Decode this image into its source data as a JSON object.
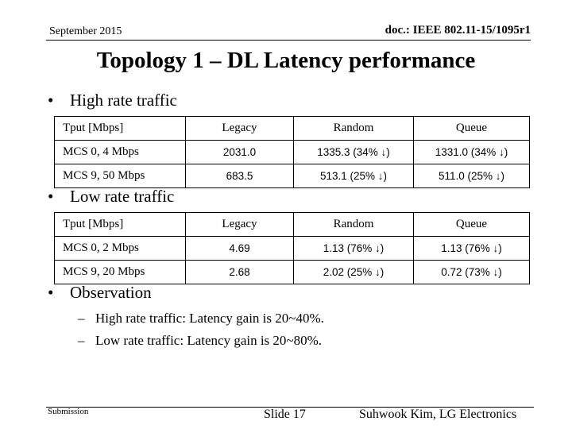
{
  "header": {
    "date": "September 2015",
    "doc": "doc.: IEEE 802.11-15/1095r1"
  },
  "title": "Topology 1 – DL Latency performance",
  "bullet_mark": "•",
  "sections": {
    "high": {
      "label": "High rate traffic",
      "columns": [
        "Tput [Mbps]",
        "Legacy",
        "Random",
        "Queue"
      ],
      "rows": [
        [
          "MCS 0, 4 Mbps",
          "2031.0",
          "1335.3 (34% ↓)",
          "1331.0 (34% ↓)"
        ],
        [
          "MCS 9, 50 Mbps",
          "683.5",
          "513.1 (25% ↓)",
          "511.0 (25% ↓)"
        ]
      ]
    },
    "low": {
      "label": "Low rate traffic",
      "columns": [
        "Tput [Mbps]",
        "Legacy",
        "Random",
        "Queue"
      ],
      "rows": [
        [
          "MCS 0, 2 Mbps",
          "4.69",
          "1.13 (76% ↓)",
          "1.13 (76% ↓)"
        ],
        [
          "MCS 9, 20 Mbps",
          "2.68",
          "2.02 (25% ↓)",
          "0.72 (73% ↓)"
        ]
      ]
    },
    "observation": {
      "label": "Observation",
      "dash": "–",
      "items": [
        "High rate traffic: Latency gain is 20~40%.",
        "Low rate traffic: Latency gain is 20~80%."
      ]
    }
  },
  "footer": {
    "submission": "Submission",
    "slide": "Slide 17",
    "author": "Suhwook Kim, LG Electronics"
  }
}
